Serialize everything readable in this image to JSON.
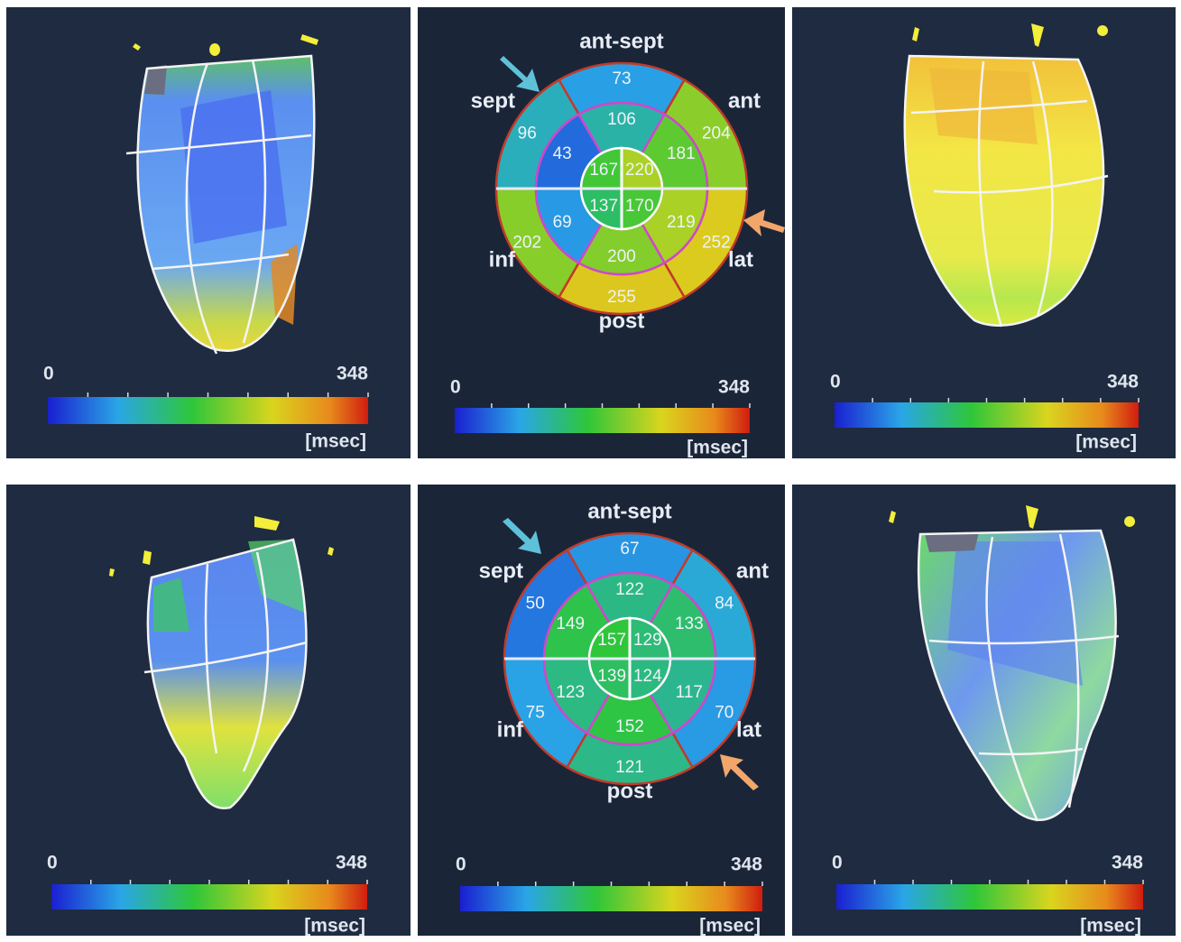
{
  "panels": [
    {
      "scale": {
        "min": 0,
        "max": 348,
        "unit": "[msec]"
      }
    },
    {
      "bullseye": {
        "labels": {
          "ant_sept": "ant-sept",
          "ant": "ant",
          "lat": "lat",
          "post": "post",
          "inf": "inf",
          "sept": "sept"
        },
        "basal": [
          73,
          204,
          252,
          255,
          202,
          96
        ],
        "mid": [
          106,
          181,
          219,
          200,
          69,
          43
        ],
        "apical": [
          220,
          170,
          137,
          167
        ]
      },
      "scale": {
        "min": 0,
        "max": 348,
        "unit": "[msec]"
      }
    },
    {
      "scale": {
        "min": 0,
        "max": 348,
        "unit": "[msec]"
      }
    },
    {
      "scale": {
        "min": 0,
        "max": 348,
        "unit": "[msec]"
      }
    },
    {
      "bullseye": {
        "labels": {
          "ant_sept": "ant-sept",
          "ant": "ant",
          "lat": "lat",
          "post": "post",
          "inf": "inf",
          "sept": "sept"
        },
        "basal": [
          67,
          84,
          70,
          121,
          75,
          50
        ],
        "mid": [
          122,
          133,
          117,
          152,
          123,
          149
        ],
        "apical": [
          129,
          124,
          139,
          157
        ]
      },
      "scale": {
        "min": 0,
        "max": 348,
        "unit": "[msec]"
      }
    },
    {
      "scale": {
        "min": 0,
        "max": 348,
        "unit": "[msec]"
      }
    }
  ]
}
